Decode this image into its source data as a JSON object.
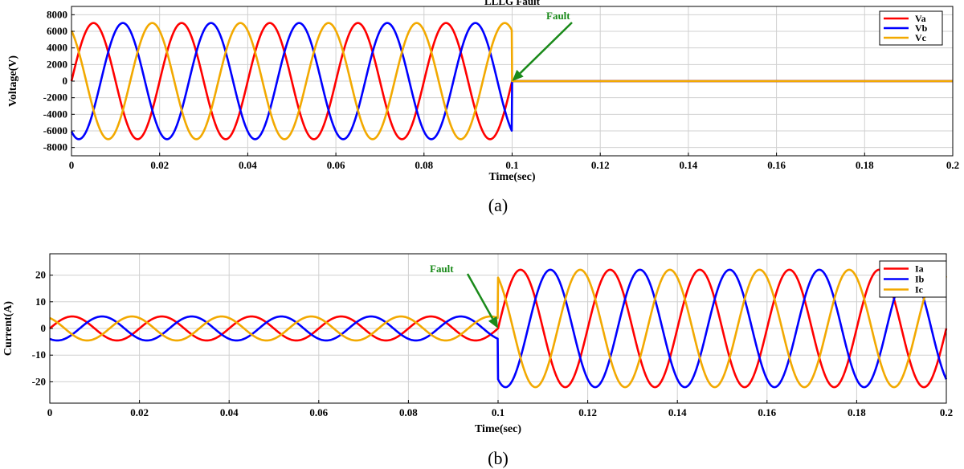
{
  "colors": {
    "red": "#ff0000",
    "blue": "#0000ff",
    "yellow": "#f2a900",
    "arrow": "#1a8a1a",
    "grid": "#d0d0d0"
  },
  "chart_data": [
    {
      "type": "line",
      "title": "LLLG Fault",
      "caption": "(a)",
      "xlabel": "Time(sec)",
      "ylabel": "Voltage(V)",
      "xlim": [
        0,
        0.2
      ],
      "ylim": [
        -9000,
        9000
      ],
      "xticks": [
        "0",
        "0.02",
        "0.04",
        "0.06",
        "0.08",
        "0.1",
        "0.12",
        "0.14",
        "0.16",
        "0.18",
        "0.2"
      ],
      "yticks": [
        "8000",
        "6000",
        "4000",
        "2000",
        "0",
        "-2000",
        "-4000",
        "-6000",
        "-8000"
      ],
      "ytick_values": [
        8000,
        6000,
        4000,
        2000,
        0,
        -2000,
        -4000,
        -6000,
        -8000
      ],
      "grid": true,
      "legend_position": "top-right",
      "frequency_hz": 50,
      "fault_time": 0.1,
      "series": [
        {
          "name": "Va",
          "color": "#ff0000",
          "amplitude_before": 7000,
          "amplitude_after": 0,
          "phase_deg": 0
        },
        {
          "name": "Vb",
          "color": "#0000ff",
          "amplitude_before": 7000,
          "amplitude_after": 0,
          "phase_deg": -120
        },
        {
          "name": "Vc",
          "color": "#f2a900",
          "amplitude_before": 7000,
          "amplitude_after": 0,
          "phase_deg": 120
        }
      ],
      "annotation": {
        "text": "Fault",
        "x": 0.1,
        "y": 0
      }
    },
    {
      "type": "line",
      "caption": "(b)",
      "xlabel": "Time(sec)",
      "ylabel": "Current(A)",
      "xlim": [
        0,
        0.2
      ],
      "ylim": [
        -28,
        28
      ],
      "xticks": [
        "0",
        "0.02",
        "0.04",
        "0.06",
        "0.08",
        "0.1",
        "0.12",
        "0.14",
        "0.16",
        "0.18",
        "0.2"
      ],
      "yticks": [
        "20",
        "10",
        "0",
        "-10",
        "-20"
      ],
      "ytick_values": [
        20,
        10,
        0,
        -10,
        -20
      ],
      "grid": true,
      "legend_position": "top-right",
      "frequency_hz": 50,
      "fault_time": 0.1,
      "series": [
        {
          "name": "Ia",
          "color": "#ff0000",
          "amplitude_before": 4.5,
          "amplitude_after": 22,
          "phase_deg": 0
        },
        {
          "name": "Ib",
          "color": "#0000ff",
          "amplitude_before": 4.5,
          "amplitude_after": 22,
          "phase_deg": -120
        },
        {
          "name": "Ic",
          "color": "#f2a900",
          "amplitude_before": 4.5,
          "amplitude_after": 22,
          "phase_deg": 120
        }
      ],
      "annotation": {
        "text": "Fault",
        "x": 0.1,
        "y": 0
      }
    }
  ]
}
